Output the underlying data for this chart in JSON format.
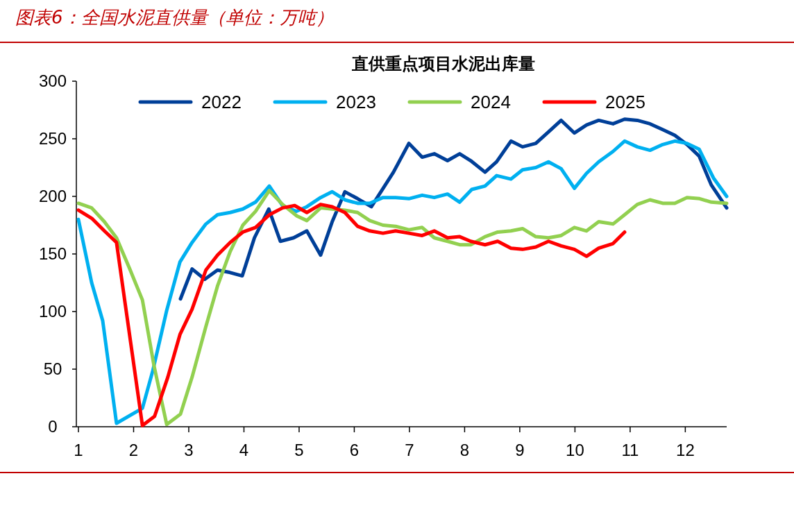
{
  "chart_data": {
    "type": "line",
    "title": "图表6：全国水泥直供量（单位：万吨）",
    "subtitle": "直供重点项目水泥出库量",
    "xlim": [
      1,
      12.75
    ],
    "xticks": [
      1,
      2,
      3,
      4,
      5,
      6,
      7,
      8,
      9,
      10,
      11,
      12
    ],
    "ylim": [
      0,
      300
    ],
    "yticks": [
      0,
      50,
      100,
      150,
      200,
      250,
      300
    ],
    "grid": false,
    "legend": "top",
    "marker": "none",
    "line_style": "solid",
    "series": [
      {
        "name": "2022",
        "color": "#003f98",
        "x": [
          2.85,
          3.06,
          3.29,
          3.52,
          3.74,
          3.97,
          4.19,
          4.45,
          4.66,
          4.9,
          5.14,
          5.39,
          5.6,
          5.83,
          6.06,
          6.31,
          6.71,
          6.99,
          7.23,
          7.45,
          7.69,
          7.91,
          8.11,
          8.37,
          8.58,
          8.84,
          9.05,
          9.29,
          9.52,
          9.75,
          9.99,
          10.21,
          10.43,
          10.69,
          10.9,
          11.13,
          11.36,
          11.59,
          11.81,
          12.03,
          12.25,
          12.47,
          12.75
        ],
        "values": [
          111,
          137,
          128,
          136,
          134,
          131,
          164,
          189,
          161,
          164,
          170,
          149,
          178,
          204,
          198,
          191,
          221,
          246,
          234,
          237,
          231,
          237,
          231,
          221,
          230,
          248,
          243,
          246,
          256,
          266,
          255,
          262,
          266,
          263,
          267,
          266,
          263,
          258,
          253,
          245,
          235,
          210,
          190
        ]
      },
      {
        "name": "2023",
        "color": "#00b0f0",
        "x": [
          1,
          1.24,
          1.44,
          1.69,
          2.16,
          2.35,
          2.6,
          2.84,
          3.06,
          3.31,
          3.52,
          3.75,
          3.98,
          4.21,
          4.46,
          4.7,
          4.95,
          5.14,
          5.39,
          5.6,
          5.83,
          6.06,
          6.28,
          6.52,
          6.75,
          6.99,
          7.23,
          7.45,
          7.69,
          7.91,
          8.13,
          8.37,
          8.58,
          8.84,
          9.05,
          9.29,
          9.52,
          9.75,
          9.99,
          10.21,
          10.43,
          10.69,
          10.9,
          11.13,
          11.36,
          11.59,
          11.81,
          12.03,
          12.25,
          12.51,
          12.75
        ],
        "values": [
          180,
          125,
          92,
          3,
          16,
          49,
          101,
          143,
          160,
          176,
          184,
          186,
          189,
          195,
          209,
          192,
          187,
          191,
          199,
          204,
          197,
          194,
          194,
          199,
          199,
          198,
          201,
          199,
          202,
          195,
          206,
          209,
          218,
          215,
          223,
          225,
          230,
          224,
          207,
          220,
          230,
          239,
          248,
          243,
          240,
          245,
          248,
          246,
          241,
          216,
          200
        ]
      },
      {
        "name": "2024",
        "color": "#92d050",
        "x": [
          1,
          1.24,
          1.47,
          1.69,
          1.93,
          2.16,
          2.37,
          2.6,
          2.85,
          3.06,
          3.31,
          3.52,
          3.75,
          3.98,
          4.21,
          4.46,
          4.7,
          4.96,
          5.14,
          5.39,
          5.6,
          5.83,
          6.06,
          6.28,
          6.52,
          6.75,
          6.99,
          7.23,
          7.45,
          7.69,
          7.91,
          8.11,
          8.37,
          8.6,
          8.84,
          9.05,
          9.29,
          9.52,
          9.75,
          9.99,
          10.21,
          10.43,
          10.69,
          10.9,
          11.13,
          11.36,
          11.59,
          11.81,
          12.03,
          12.26,
          12.47,
          12.75
        ],
        "values": [
          194,
          190,
          178,
          164,
          137,
          110,
          53,
          2,
          11,
          43,
          87,
          122,
          152,
          175,
          187,
          205,
          193,
          183,
          179,
          190,
          189,
          188,
          186,
          179,
          175,
          174,
          171,
          173,
          164,
          161,
          158,
          158,
          165,
          169,
          170,
          172,
          165,
          164,
          166,
          173,
          170,
          178,
          176,
          184,
          193,
          197,
          194,
          194,
          199,
          198,
          195,
          194
        ]
      },
      {
        "name": "2025",
        "color": "#ff0000",
        "x": [
          1,
          1.24,
          1.47,
          1.69,
          2.16,
          2.38,
          2.62,
          2.84,
          3.06,
          3.31,
          3.52,
          3.75,
          3.98,
          4.21,
          4.46,
          4.7,
          4.92,
          5.14,
          5.39,
          5.6,
          5.83,
          6.06,
          6.28,
          6.52,
          6.75,
          6.99,
          7.23,
          7.45,
          7.69,
          7.91,
          8.11,
          8.37,
          8.6,
          8.84,
          9.05,
          9.29,
          9.52,
          9.75,
          9.99,
          10.21,
          10.43,
          10.69,
          10.9
        ],
        "values": [
          188,
          181,
          170,
          160,
          1,
          9,
          43,
          80,
          102,
          136,
          149,
          160,
          169,
          173,
          184,
          190,
          192,
          186,
          193,
          191,
          186,
          174,
          170,
          168,
          170,
          168,
          166,
          170,
          164,
          165,
          161,
          158,
          161,
          155,
          154,
          156,
          161,
          157,
          154,
          148,
          155,
          159,
          169
        ]
      }
    ]
  }
}
